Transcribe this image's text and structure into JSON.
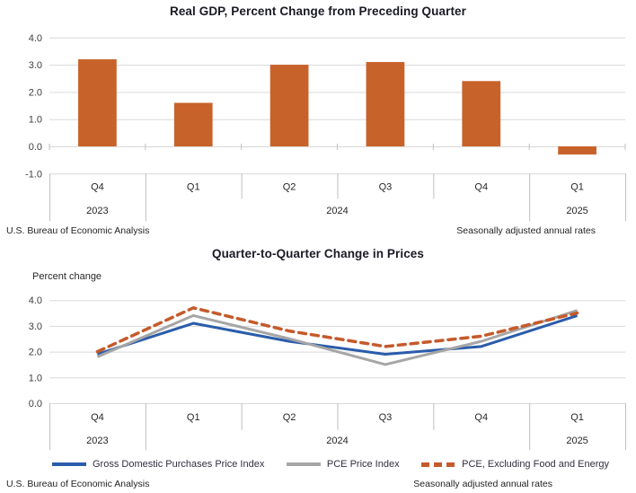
{
  "chart_data": [
    {
      "type": "bar",
      "title": "Real GDP, Percent Change from Preceding Quarter",
      "categories": [
        "Q4",
        "Q1",
        "Q2",
        "Q3",
        "Q4",
        "Q1"
      ],
      "year_groups": [
        {
          "label": "2023",
          "span": 1
        },
        {
          "label": "2024",
          "span": 4
        },
        {
          "label": "2025",
          "span": 1
        }
      ],
      "values": [
        3.2,
        1.6,
        3.0,
        3.1,
        2.4,
        -0.3
      ],
      "bar_color": "#C8622B",
      "ylim": [
        -1.0,
        4.0
      ],
      "yticks": [
        4.0,
        3.0,
        2.0,
        1.0,
        0.0,
        -1.0
      ],
      "grid": true,
      "gridline_color": "#D9D9D9",
      "axis_line_color": "#BFBFBF",
      "source_note": "U.S. Bureau of Economic Analysis",
      "rate_note": "Seasonally adjusted annual rates"
    },
    {
      "type": "line",
      "title": "Quarter-to-Quarter Change in Prices",
      "ylabel": "Percent change",
      "categories": [
        "Q4",
        "Q1",
        "Q2",
        "Q3",
        "Q4",
        "Q1"
      ],
      "year_groups": [
        {
          "label": "2023",
          "span": 1
        },
        {
          "label": "2024",
          "span": 4
        },
        {
          "label": "2025",
          "span": 1
        }
      ],
      "series": [
        {
          "name": "Gross Domestic Purchases Price Index",
          "color": "#2A5CAA",
          "dash": "solid",
          "values": [
            1.9,
            3.1,
            2.4,
            1.9,
            2.2,
            3.4
          ]
        },
        {
          "name": "PCE Price Index",
          "color": "#A6A6A6",
          "dash": "solid",
          "values": [
            1.8,
            3.4,
            2.5,
            1.5,
            2.4,
            3.6
          ]
        },
        {
          "name": "PCE, Excluding Food and Energy",
          "color": "#C55A2B",
          "dash": "dashed",
          "values": [
            2.0,
            3.7,
            2.8,
            2.2,
            2.6,
            3.5
          ]
        }
      ],
      "ylim": [
        0.0,
        4.0
      ],
      "yticks": [
        4.0,
        3.0,
        2.0,
        1.0,
        0.0
      ],
      "grid": true,
      "gridline_color": "#D9D9D9",
      "axis_line_color": "#BFBFBF",
      "legend_position": "bottom",
      "source_note": "U.S. Bureau of Economic Analysis",
      "rate_note": "Seasonally adjusted annual rates"
    }
  ]
}
